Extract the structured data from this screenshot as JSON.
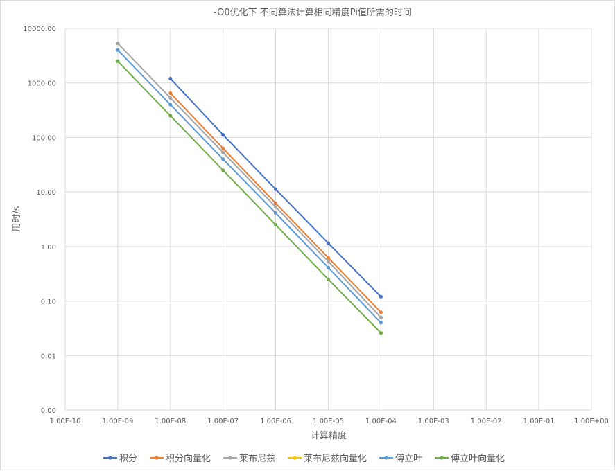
{
  "chart_data": {
    "type": "line",
    "title": "-O0优化下 不同算法计算相同精度Pi值所需的时间",
    "xlabel": "计算精度",
    "ylabel": "用时/s",
    "x_scale": "log",
    "y_scale": "log",
    "xlim": [
      1e-10,
      1
    ],
    "ylim": [
      0.001,
      10000
    ],
    "x_tick_values": [
      1e-10,
      1e-09,
      1e-08,
      1e-07,
      1e-06,
      1e-05,
      0.0001,
      0.001,
      0.01,
      0.1,
      1
    ],
    "x_tick_labels": [
      "1.00E-10",
      "1.00E-09",
      "1.00E-08",
      "1.00E-07",
      "1.00E-06",
      "1.00E-05",
      "1.00E-04",
      "1.00E-03",
      "1.00E-02",
      "1.00E-01",
      "1.00E+00"
    ],
    "y_tick_values": [
      0.001,
      0.01,
      0.1,
      1,
      10,
      100,
      1000,
      10000
    ],
    "y_tick_labels": [
      "0.00",
      "0.01",
      "0.10",
      "1.00",
      "10.00",
      "100.00",
      "1000.00",
      "10000.00"
    ],
    "grid": true,
    "legend_position": "bottom",
    "series": [
      {
        "name": "积分",
        "color": "#4472c4",
        "x": [
          1e-08,
          1e-07,
          1e-06,
          1e-05,
          0.0001
        ],
        "y": [
          1200,
          112,
          11.2,
          1.15,
          0.12
        ]
      },
      {
        "name": "积分向量化",
        "color": "#ed7d31",
        "x": [
          1e-08,
          1e-07,
          1e-06,
          1e-05,
          0.0001
        ],
        "y": [
          650,
          63,
          6.2,
          0.62,
          0.062
        ]
      },
      {
        "name": "莱布尼兹",
        "color": "#a5a5a5",
        "x": [
          1e-09,
          1e-08,
          1e-07,
          1e-06,
          1e-05,
          0.0001
        ],
        "y": [
          5300,
          530,
          53,
          5.3,
          0.53,
          0.05
        ]
      },
      {
        "name": "莱布尼兹向量化",
        "color": "#ffc000",
        "x": [],
        "y": []
      },
      {
        "name": "傅立叶",
        "color": "#5b9bd5",
        "x": [
          1e-09,
          1e-08,
          1e-07,
          1e-06,
          1e-05,
          0.0001
        ],
        "y": [
          4000,
          400,
          40,
          4.1,
          0.41,
          0.04
        ]
      },
      {
        "name": "傅立叶向量化",
        "color": "#70ad47",
        "x": [
          1e-09,
          1e-08,
          1e-07,
          1e-06,
          1e-05,
          0.0001
        ],
        "y": [
          2500,
          250,
          25,
          2.5,
          0.25,
          0.026
        ]
      }
    ]
  }
}
